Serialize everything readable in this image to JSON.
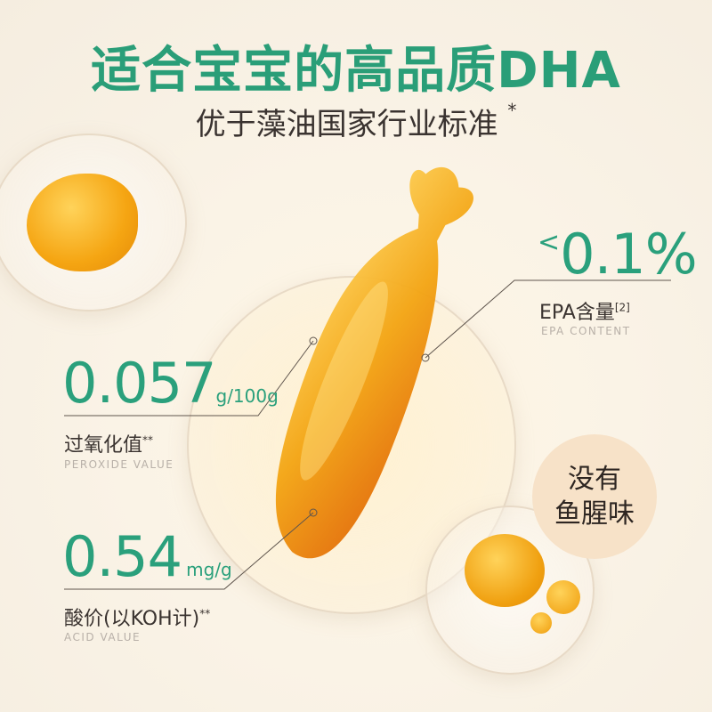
{
  "title": "适合宝宝的高品质DHA",
  "subtitle": "优于藻油国家行业标准",
  "subtitle_mark": "*",
  "epa": {
    "prefix": "<",
    "value": "0.1%",
    "label": "EPA含量",
    "ref": "[2]",
    "label_en": "EPA CONTENT"
  },
  "peroxide": {
    "value": "0.057",
    "unit": "g/100g",
    "label": "过氧化值",
    "mark": "**",
    "label_en": "PEROXIDE VALUE"
  },
  "acid": {
    "value": "0.54",
    "unit": "mg/g",
    "label": "酸价(以KOH计)",
    "mark": "**",
    "label_en": "ACID VALUE"
  },
  "badge": {
    "line1": "没有",
    "line2": "鱼腥味"
  },
  "colors": {
    "accent": "#2aa07c",
    "capsule": "#f0a010",
    "background": "#f8f1e6"
  }
}
